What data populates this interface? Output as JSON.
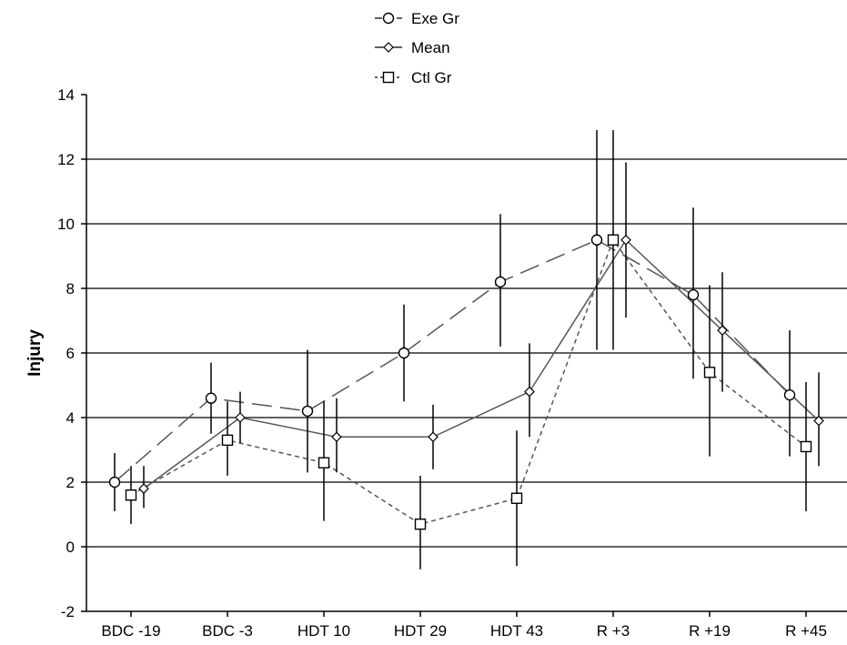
{
  "chart_data": {
    "type": "line",
    "title": "",
    "xlabel": "",
    "ylabel": "Injury",
    "categories": [
      "BDC -19",
      "BDC -3",
      "HDT 10",
      "HDT 29",
      "HDT 43",
      "R +3",
      "R +19",
      "R +45"
    ],
    "ylim": [
      -2,
      14
    ],
    "yticks": [
      -2,
      0,
      2,
      4,
      6,
      8,
      10,
      12,
      14
    ],
    "grid": "horizontal",
    "legend_position": "top-center",
    "series": [
      {
        "name": "Exe Gr",
        "marker": "circle",
        "line_style": "long-dash",
        "values": [
          2.0,
          4.6,
          4.2,
          6.0,
          8.2,
          9.5,
          7.8,
          4.7
        ],
        "error_low": [
          1.1,
          3.5,
          2.3,
          4.5,
          6.2,
          6.1,
          5.2,
          2.8
        ],
        "error_high": [
          2.9,
          5.7,
          6.1,
          7.5,
          10.3,
          12.9,
          10.5,
          6.7
        ]
      },
      {
        "name": "Ctl Gr",
        "marker": "square",
        "line_style": "short-dash",
        "values": [
          1.6,
          3.3,
          2.6,
          0.7,
          1.5,
          9.5,
          5.4,
          3.1
        ],
        "error_low": [
          0.7,
          2.2,
          0.8,
          -0.7,
          -0.6,
          6.1,
          2.8,
          1.1
        ],
        "error_high": [
          2.5,
          4.5,
          4.5,
          2.2,
          3.6,
          12.9,
          8.1,
          5.1
        ]
      },
      {
        "name": "Mean",
        "marker": "diamond",
        "line_style": "solid",
        "values": [
          1.8,
          4.0,
          3.4,
          3.4,
          4.8,
          9.5,
          6.7,
          3.9
        ],
        "error_low": [
          1.2,
          3.2,
          2.3,
          2.4,
          3.4,
          7.1,
          4.8,
          2.5
        ],
        "error_high": [
          2.5,
          4.8,
          4.6,
          4.4,
          6.3,
          11.9,
          8.5,
          5.4
        ]
      }
    ]
  },
  "colors": {
    "axis": "#000000",
    "grid": "#000000",
    "exe_line": "#555555",
    "ctl_line": "#555555",
    "mean_line": "#555555",
    "error_bar": "#000000",
    "marker_fill": "#ffffff"
  }
}
